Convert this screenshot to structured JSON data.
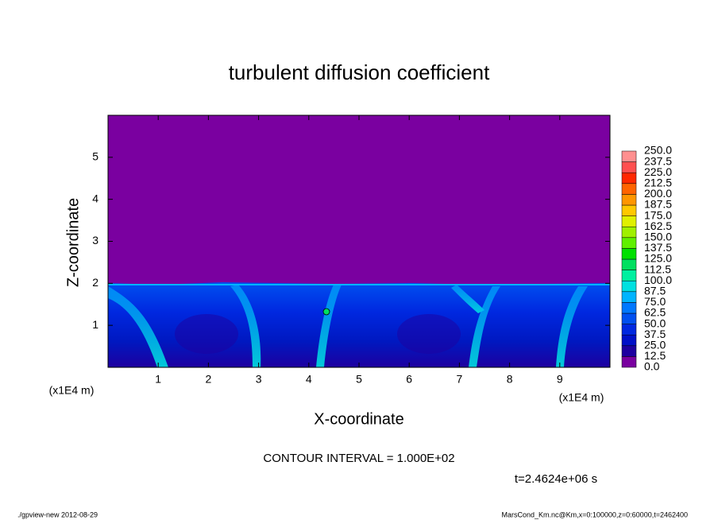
{
  "chart_data": {
    "type": "contour",
    "title": "turbulent diffusion coefficient",
    "xlabel": "X-coordinate",
    "ylabel": "Z-coordinate",
    "x_unit_labels": [
      "(x1E4 m)",
      "(x1E4 m)"
    ],
    "xlim": [
      0,
      10
    ],
    "ylim": [
      0,
      6
    ],
    "xticks": [
      1,
      2,
      3,
      4,
      5,
      6,
      7,
      8,
      9
    ],
    "yticks": [
      1,
      2,
      3,
      4,
      5
    ],
    "contour_interval_label": "CONTOUR INTERVAL = 1.000E+02",
    "time_label": "t=2.4624e+06 s",
    "footer_left": "./gpview-new  2012-08-29",
    "footer_right": "MarsCond_Km.nc@Km,x=0:100000,z=0:60000,t=2462400",
    "colorbar": {
      "levels": [
        {
          "value": 0,
          "label": "0.0"
        },
        12.5,
        {
          "value": 25,
          "label": "25.0"
        },
        37.5,
        {
          "value": 50,
          "label": "50.0"
        },
        62.5,
        {
          "value": 75,
          "label": "75.0"
        },
        87.5,
        {
          "value": 100,
          "label": "100.0"
        },
        112.5,
        {
          "value": 125,
          "label": "125.0"
        },
        137.5,
        {
          "value": 150,
          "label": "150.0"
        },
        162.5,
        {
          "value": 175,
          "label": "175.0"
        },
        187.5,
        {
          "value": 200,
          "label": "200.0"
        },
        212.5,
        {
          "value": 225,
          "label": "225.0"
        },
        237.5,
        {
          "value": 250,
          "label": "250.0"
        }
      ],
      "colors": [
        "#7a00a0",
        "#1e00a0",
        "#0010c8",
        "#0028e0",
        "#0050f0",
        "#0078ff",
        "#00b4ff",
        "#00e0e0",
        "#00f0a0",
        "#00e060",
        "#00e000",
        "#60f000",
        "#a0f000",
        "#e0f000",
        "#ffc800",
        "#ff9600",
        "#ff6400",
        "#ff2800",
        "#ff5050",
        "#ff9090"
      ]
    }
  }
}
